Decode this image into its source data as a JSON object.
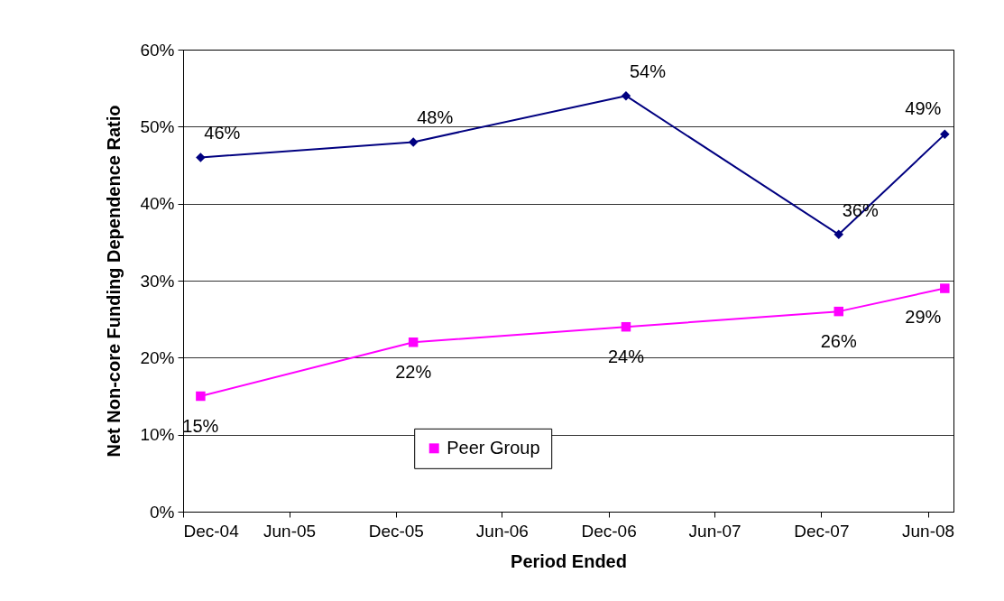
{
  "chart_data": {
    "type": "line",
    "xlabel": "Period Ended",
    "ylabel": "Net Non-core Funding Dependence Ratio",
    "x": [
      "2004-12-31",
      "2005-12-31",
      "2006-12-31",
      "2007-12-31",
      "2008-06-30"
    ],
    "series": [
      {
        "color": "#000080",
        "marker": "diamond",
        "values": [
          46,
          48,
          54,
          36,
          49
        ],
        "value_labels": [
          "46%",
          "48%",
          "54%",
          "36%",
          "49%"
        ]
      },
      {
        "name": "Peer Group",
        "color": "#ff00ff",
        "marker": "square",
        "values": [
          15,
          22,
          24,
          26,
          29
        ],
        "value_labels": [
          "15%",
          "22%",
          "24%",
          "26%",
          "29%"
        ]
      }
    ],
    "xlim": [
      "2004-12-01",
      "2008-07-15"
    ],
    "xticks": [
      {
        "value": "2004-12-01",
        "label": "Dec-04"
      },
      {
        "value": "2005-06-01",
        "label": "Jun-05"
      },
      {
        "value": "2005-12-01",
        "label": "Dec-05"
      },
      {
        "value": "2006-06-01",
        "label": "Jun-06"
      },
      {
        "value": "2006-12-01",
        "label": "Dec-06"
      },
      {
        "value": "2007-06-01",
        "label": "Jun-07"
      },
      {
        "value": "2007-12-01",
        "label": "Dec-07"
      },
      {
        "value": "2008-06-01",
        "label": "Jun-08"
      }
    ],
    "ylim": [
      0,
      60
    ],
    "yticks": [
      {
        "value": 0,
        "label": "0%"
      },
      {
        "value": 10,
        "label": "10%"
      },
      {
        "value": 20,
        "label": "20%"
      },
      {
        "value": 30,
        "label": "30%"
      },
      {
        "value": 40,
        "label": "40%"
      },
      {
        "value": 50,
        "label": "50%"
      },
      {
        "value": 60,
        "label": "60%"
      }
    ],
    "grid": "y",
    "legend": "bottom",
    "line_style": "solid"
  }
}
